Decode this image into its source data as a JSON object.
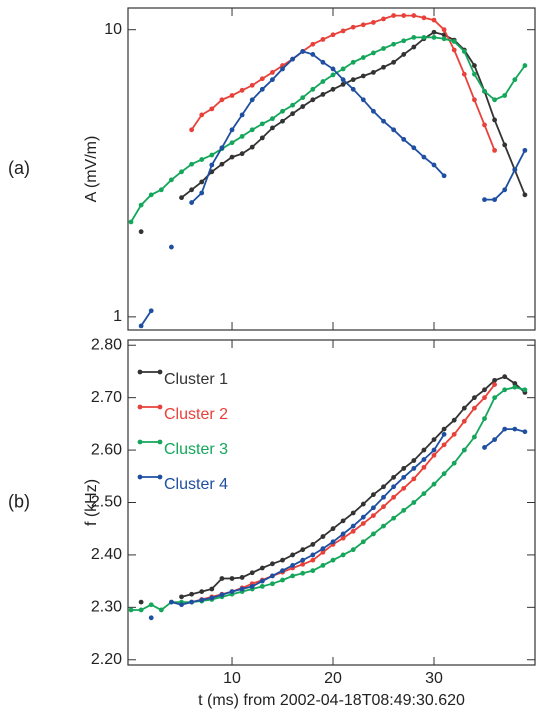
{
  "chart_data": [
    {
      "type": "line",
      "label": "(a)",
      "ylabel": "A (mV/m)",
      "yscale": "log",
      "xlim": [
        -0.3,
        40
      ],
      "ylim": [
        0.9,
        11.9
      ],
      "yticks": [
        1,
        10
      ],
      "x": [
        0,
        1,
        2,
        3,
        4,
        5,
        6,
        7,
        8,
        9,
        10,
        11,
        12,
        13,
        14,
        15,
        16,
        17,
        18,
        19,
        20,
        21,
        22,
        23,
        24,
        25,
        26,
        27,
        28,
        29,
        30,
        31,
        32,
        33,
        34,
        35,
        36,
        37,
        38,
        39
      ],
      "series": [
        {
          "name": "Cluster 1",
          "color": "#333333",
          "values": [
            null,
            1.98,
            null,
            null,
            null,
            2.6,
            2.77,
            2.95,
            3.2,
            3.4,
            3.6,
            3.7,
            3.9,
            4.2,
            4.55,
            4.8,
            5.1,
            5.4,
            5.7,
            5.95,
            6.2,
            6.45,
            6.7,
            6.9,
            7.1,
            7.4,
            7.7,
            8.2,
            8.7,
            9.3,
            9.8,
            9.6,
            9.2,
            8.5,
            7.5,
            6.1,
            4.85,
            3.97,
            3.25,
            2.66
          ]
        },
        {
          "name": "Cluster 2",
          "color": "#e8413a",
          "values": [
            null,
            null,
            null,
            null,
            null,
            null,
            4.48,
            5.05,
            5.3,
            5.7,
            5.9,
            6.15,
            6.4,
            6.75,
            7.1,
            7.5,
            7.9,
            8.4,
            8.9,
            9.25,
            9.6,
            9.9,
            10.2,
            10.4,
            10.6,
            10.9,
            11.2,
            11.2,
            11.2,
            11.0,
            10.8,
            10,
            8.5,
            7,
            5.7,
            4.66,
            3.8,
            null,
            null,
            null
          ]
        },
        {
          "name": "Cluster 3",
          "color": "#14a65a",
          "values": [
            2.14,
            2.45,
            2.66,
            2.77,
            3.0,
            3.2,
            3.4,
            3.53,
            3.66,
            3.85,
            4.04,
            4.25,
            4.48,
            4.7,
            4.9,
            5.2,
            5.46,
            5.8,
            6.2,
            6.6,
            6.96,
            7.3,
            7.7,
            8.0,
            8.3,
            8.6,
            8.9,
            9.15,
            9.4,
            9.4,
            9.4,
            9.3,
            9.1,
            8.4,
            7,
            6.1,
            5.7,
            5.9,
            6.7,
            7.5
          ]
        },
        {
          "name": "Cluster 4",
          "color": "#1f4fa0",
          "values": [
            null,
            0.93,
            1.05,
            null,
            1.75,
            null,
            2.5,
            2.7,
            3.38,
            3.88,
            4.48,
            5.05,
            5.7,
            6.2,
            6.7,
            7.3,
            7.9,
            8.4,
            8.2,
            7.7,
            7.3,
            6.7,
            6.2,
            5.7,
            5.2,
            4.8,
            4.48,
            4.15,
            3.88,
            3.6,
            3.38,
            3.1,
            null,
            null,
            null,
            2.56,
            2.56,
            2.77,
            3.25,
            3.8
          ]
        }
      ]
    },
    {
      "type": "line",
      "label": "(b)",
      "ylabel": "f (kHz)",
      "xlabel": "t (ms) from 2002-04-18T08:49:30.620",
      "legend": "upper left",
      "xlim": [
        -0.3,
        40
      ],
      "xticks": [
        10,
        20,
        30
      ],
      "ylim": [
        2.19,
        2.81
      ],
      "yticks": [
        {
          "value": 2.2,
          "label": "2.20"
        },
        {
          "value": 2.3,
          "label": "2.30"
        },
        {
          "value": 2.4,
          "label": "2.40"
        },
        {
          "value": 2.5,
          "label": "2.50"
        },
        {
          "value": 2.6,
          "label": "2.60"
        },
        {
          "value": 2.7,
          "label": "2.70"
        },
        {
          "value": 2.8,
          "label": "2.80"
        }
      ],
      "x": [
        0,
        1,
        2,
        3,
        4,
        5,
        6,
        7,
        8,
        9,
        10,
        11,
        12,
        13,
        14,
        15,
        16,
        17,
        18,
        19,
        20,
        21,
        22,
        23,
        24,
        25,
        26,
        27,
        28,
        29,
        30,
        31,
        32,
        33,
        34,
        35,
        36,
        37,
        38,
        39
      ],
      "series": [
        {
          "name": "Cluster 1",
          "color": "#333333",
          "values": [
            null,
            2.31,
            null,
            null,
            null,
            2.32,
            2.325,
            2.33,
            2.335,
            2.355,
            2.355,
            2.357,
            2.366,
            2.375,
            2.383,
            2.39,
            2.4,
            2.41,
            2.42,
            2.435,
            2.45,
            2.465,
            2.48,
            2.497,
            2.515,
            2.53,
            2.548,
            2.565,
            2.58,
            2.6,
            2.62,
            2.64,
            2.657,
            2.68,
            2.7,
            2.715,
            2.733,
            2.74,
            2.727,
            2.71
          ]
        },
        {
          "name": "Cluster 2",
          "color": "#e8413a",
          "values": [
            null,
            null,
            null,
            null,
            null,
            null,
            2.31,
            2.315,
            2.32,
            2.325,
            2.33,
            2.337,
            2.345,
            2.352,
            2.36,
            2.367,
            2.375,
            2.382,
            2.39,
            2.405,
            2.42,
            2.432,
            2.445,
            2.46,
            2.475,
            2.492,
            2.51,
            2.527,
            2.545,
            2.567,
            2.59,
            2.61,
            2.63,
            2.655,
            2.68,
            2.7,
            2.725,
            null,
            null,
            null
          ]
        },
        {
          "name": "Cluster 3",
          "color": "#14a65a",
          "values": [
            2.295,
            2.295,
            2.305,
            2.295,
            2.31,
            2.31,
            2.31,
            2.312,
            2.315,
            2.32,
            2.325,
            2.33,
            2.335,
            2.34,
            2.345,
            2.352,
            2.36,
            2.365,
            2.37,
            2.38,
            2.39,
            2.4,
            2.41,
            2.425,
            2.44,
            2.455,
            2.47,
            2.485,
            2.5,
            2.517,
            2.535,
            2.555,
            2.575,
            2.6,
            2.625,
            2.66,
            2.7,
            2.715,
            2.72,
            2.715
          ]
        },
        {
          "name": "Cluster 4",
          "color": "#1f4fa0",
          "values": [
            null,
            null,
            2.28,
            null,
            2.31,
            2.305,
            2.31,
            2.314,
            2.318,
            2.324,
            2.33,
            2.335,
            2.34,
            2.35,
            2.36,
            2.37,
            2.38,
            2.39,
            2.4,
            2.412,
            2.425,
            2.44,
            2.455,
            2.472,
            2.49,
            2.51,
            2.53,
            2.548,
            2.565,
            2.582,
            2.6,
            2.63,
            null,
            null,
            null,
            2.605,
            2.62,
            2.64,
            2.64,
            2.635
          ]
        }
      ]
    }
  ]
}
